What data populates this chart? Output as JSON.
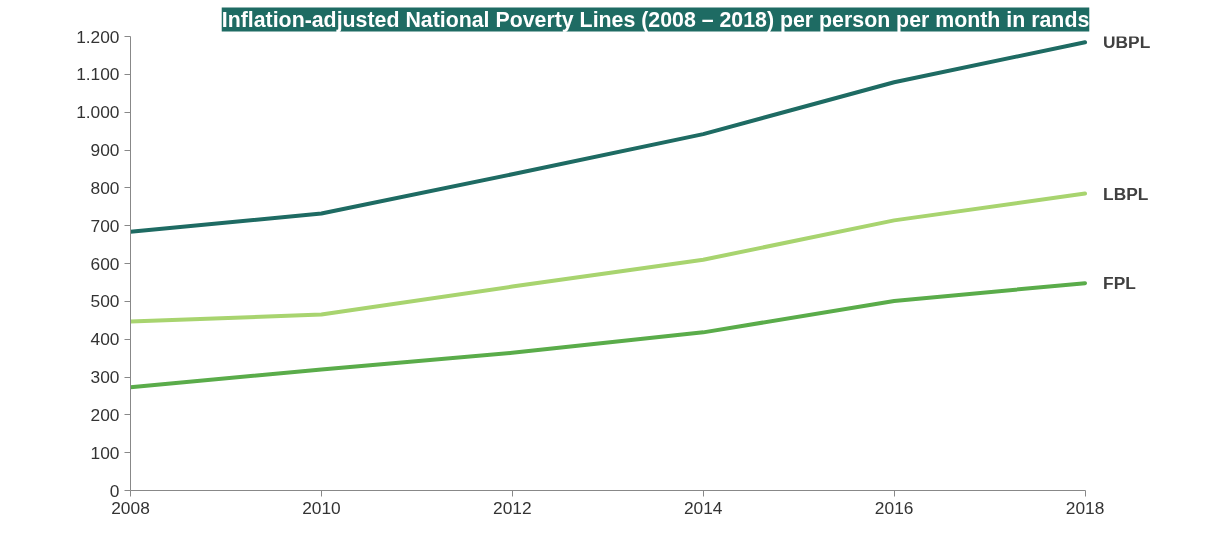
{
  "chart_data": {
    "type": "line",
    "title": "Inflation-adjusted National Poverty Lines (2008 – 2018) per person per month in rands",
    "x": [
      2008,
      2010,
      2012,
      2014,
      2016,
      2018
    ],
    "series": [
      {
        "name": "UBPL",
        "color": "#1e6b63",
        "values": [
          684,
          732,
          836,
          942,
          1079,
          1185
        ]
      },
      {
        "name": "LBPL",
        "color": "#a8d46f",
        "values": [
          447,
          465,
          539,
          610,
          714,
          785
        ]
      },
      {
        "name": "FPL",
        "color": "#5aac4a",
        "values": [
          273,
          320,
          364,
          418,
          501,
          548
        ]
      }
    ],
    "xlim": [
      2008,
      2018
    ],
    "xticks": [
      2008,
      2010,
      2012,
      2014,
      2016,
      2018
    ],
    "ylim": [
      0,
      1200
    ],
    "yticks": [
      0,
      100,
      200,
      300,
      400,
      500,
      600,
      700,
      800,
      900,
      {
        "value": 1000,
        "label": "1.000"
      },
      {
        "value": 1100,
        "label": "1.100"
      },
      {
        "value": 1200,
        "label": "1.200"
      }
    ],
    "grid": false,
    "legend": false,
    "marker": "none",
    "line_style": "solid"
  }
}
